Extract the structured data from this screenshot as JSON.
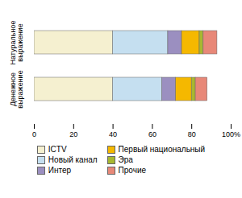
{
  "chart_data": {
    "type": "bar",
    "orientation": "horizontal",
    "stacked": true,
    "categories": [
      "Натуральное выражение",
      "Денежное выражение"
    ],
    "series": [
      {
        "name": "ICTV",
        "color": "#f5f0d0",
        "values": [
          40,
          40
        ]
      },
      {
        "name": "Новый канал",
        "color": "#c5dff0",
        "values": [
          28,
          25
        ]
      },
      {
        "name": "Интер",
        "color": "#9b8fc0",
        "values": [
          7,
          7
        ]
      },
      {
        "name": "Первый национальный",
        "color": "#f5b800",
        "values": [
          9,
          8
        ]
      },
      {
        "name": "Эра",
        "color": "#a8b830",
        "values": [
          2,
          2
        ]
      },
      {
        "name": "Прочие",
        "color": "#e88878",
        "values": [
          7,
          6
        ]
      }
    ],
    "xlim": [
      0,
      100
    ],
    "xticks": [
      0,
      20,
      40,
      60,
      80,
      {
        "value": 100,
        "label": "100%"
      }
    ],
    "grid": false,
    "legend": "bottom"
  }
}
